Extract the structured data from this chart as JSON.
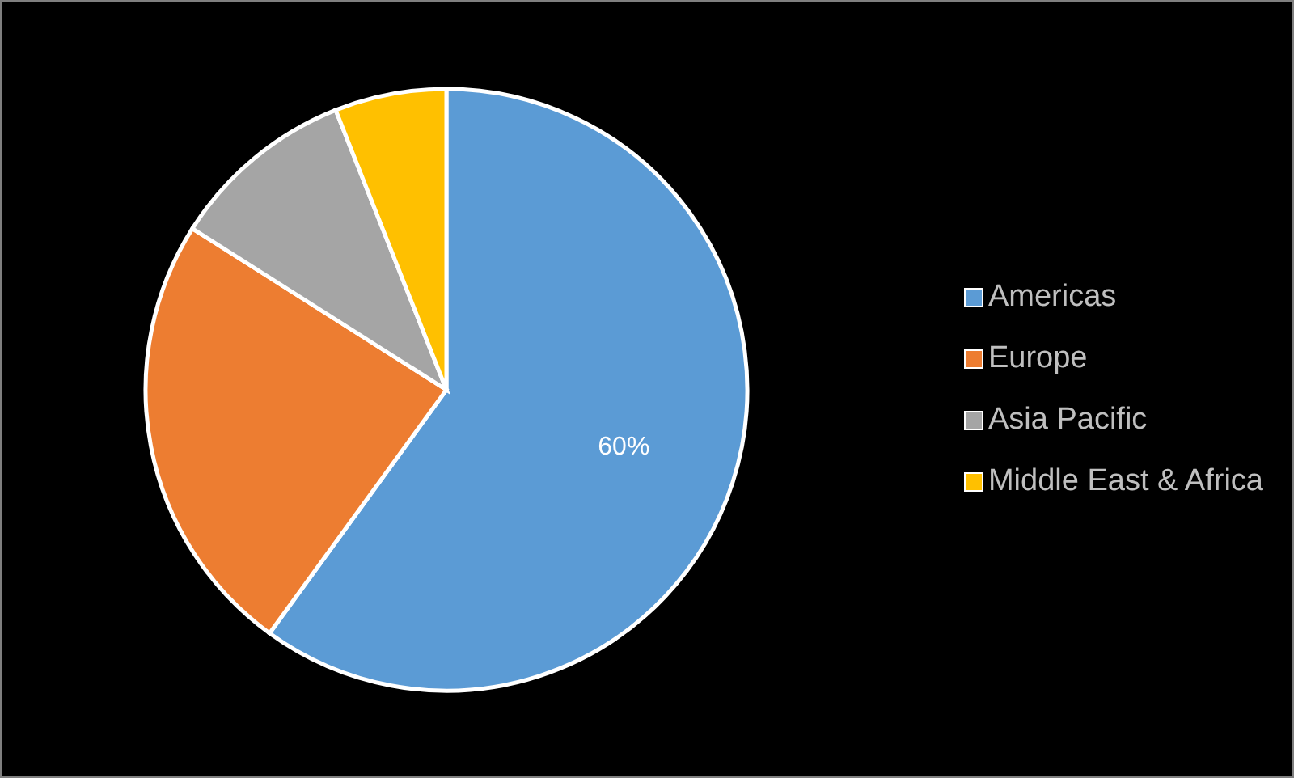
{
  "chart_data": {
    "type": "pie",
    "categories": [
      "Americas",
      "Europe",
      "Asia Pacific",
      "Middle East & Africa"
    ],
    "values": [
      60,
      24,
      10,
      6
    ],
    "colors": [
      "#5b9bd5",
      "#ed7d31",
      "#a5a5a5",
      "#ffc000"
    ],
    "value_labels": [
      "60%",
      null,
      null,
      null
    ],
    "legend": "right"
  }
}
